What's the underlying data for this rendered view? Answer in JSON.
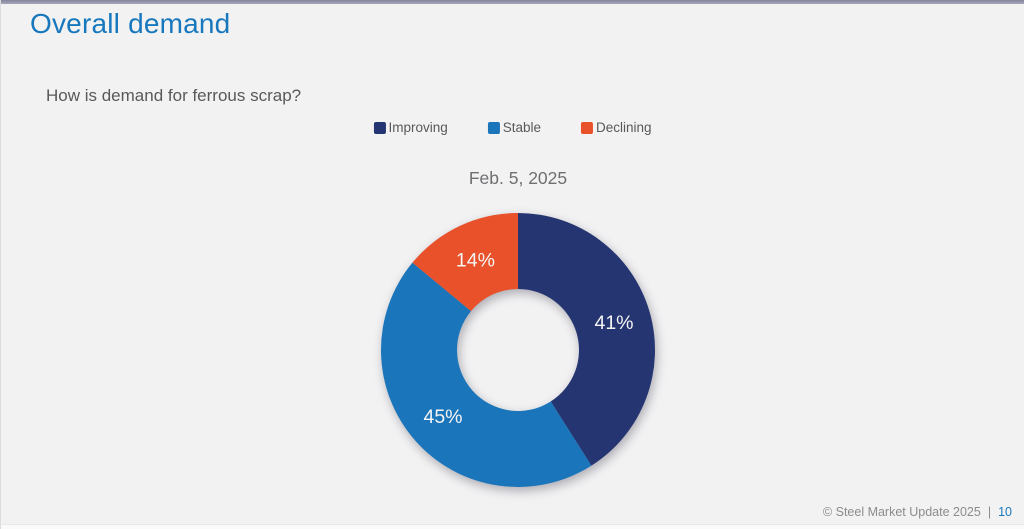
{
  "page": {
    "title": "Overall demand",
    "question": "How is demand for ferrous scrap?",
    "footer": {
      "copyright": "© Steel Market Update 2025",
      "separator": "|",
      "page_number": "10"
    }
  },
  "colors": {
    "title_blue": "#1878bd",
    "background": "#f2f2f3",
    "top_bar": "#9a9bb0",
    "slice_label": "#f5f5f5"
  },
  "chart_data": {
    "type": "pie",
    "subtype": "donut",
    "title": "Feb. 5, 2025",
    "categories": [
      "Improving",
      "Stable",
      "Declining"
    ],
    "values": [
      41,
      45,
      14
    ],
    "unit": "%",
    "colors": [
      "#253572",
      "#1b75ba",
      "#e8512a"
    ],
    "data_labels": [
      "41%",
      "45%",
      "14%"
    ],
    "legend_position": "top",
    "start_angle_deg": 0,
    "direction": "clockwise",
    "inner_radius_ratio": 0.445
  }
}
